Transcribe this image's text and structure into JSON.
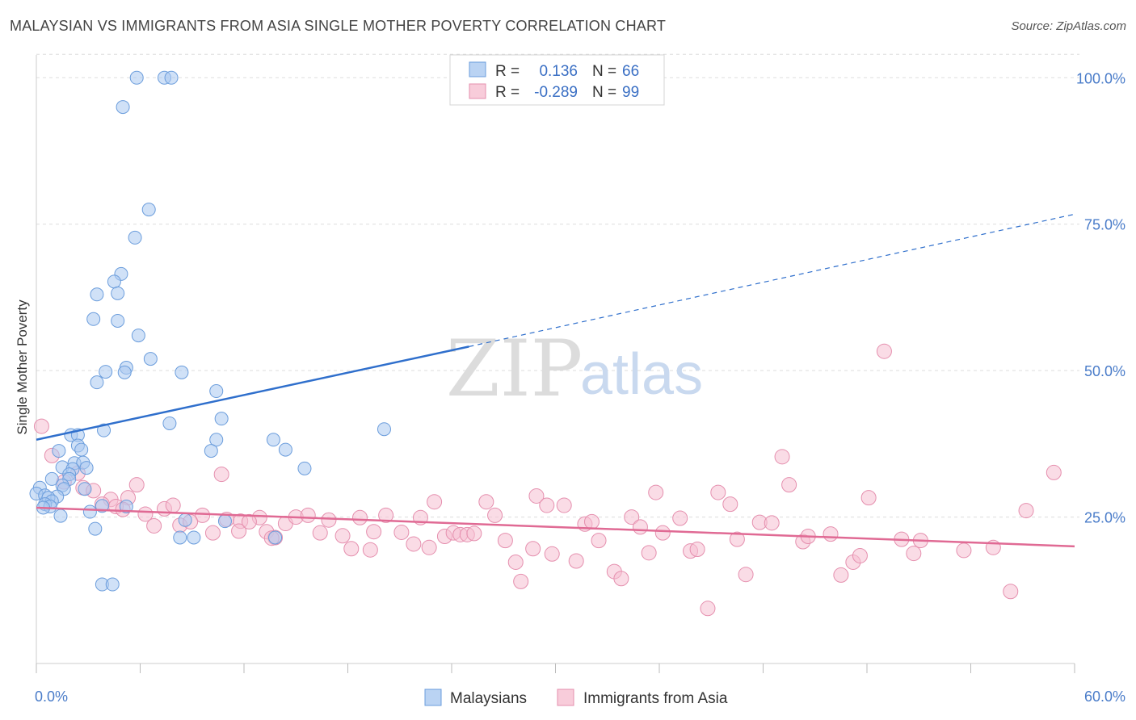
{
  "title": "MALAYSIAN VS IMMIGRANTS FROM ASIA SINGLE MOTHER POVERTY CORRELATION CHART",
  "source": "Source: ZipAtlas.com",
  "watermark": {
    "zip": "ZIP",
    "atlas": "atlas"
  },
  "colors": {
    "blue_fill": "#a9c8f0",
    "blue_stroke": "#6b9ddc",
    "blue_line": "#2f6fcc",
    "pink_fill": "#f6bfd1",
    "pink_stroke": "#e58fae",
    "pink_line": "#e06a94",
    "grid": "#dddddd",
    "tick_text": "#4a7cc9"
  },
  "legend": {
    "rows": [
      {
        "r_label": "R = ",
        "r_value": "0.136",
        "n_label": "N = ",
        "n_value": "66"
      },
      {
        "r_label": "R = ",
        "r_value": "-0.289",
        "n_label": "N = ",
        "n_value": "99"
      }
    ]
  },
  "chart_data": {
    "type": "scatter",
    "xlabel": "",
    "ylabel": "Single Mother Poverty",
    "xlim": [
      0,
      60
    ],
    "ylim": [
      0,
      105
    ],
    "x_tick_labels": [
      "0.0%",
      "60.0%"
    ],
    "y_ticks": [
      25,
      50,
      75,
      100
    ],
    "y_tick_labels": [
      "25.0%",
      "50.0%",
      "75.0%",
      "100.0%"
    ],
    "grid": true,
    "legend_position": "top-center",
    "series": [
      {
        "name": "Malaysians",
        "trend": {
          "x0": 0,
          "y0": 38.2,
          "x1": 25,
          "y1": 54.1,
          "dash_x1": 60,
          "dash_y1": 76.7
        },
        "points": [
          [
            5.8,
            100
          ],
          [
            7.4,
            100
          ],
          [
            7.8,
            100
          ],
          [
            5.0,
            95
          ],
          [
            6.5,
            77.5
          ],
          [
            5.7,
            72.7
          ],
          [
            4.9,
            66.5
          ],
          [
            4.5,
            65.2
          ],
          [
            3.5,
            63
          ],
          [
            4.7,
            63.2
          ],
          [
            3.3,
            58.8
          ],
          [
            4.7,
            58.5
          ],
          [
            5.9,
            56
          ],
          [
            6.6,
            52
          ],
          [
            4.0,
            49.8
          ],
          [
            5.2,
            50.5
          ],
          [
            5.1,
            49.7
          ],
          [
            8.4,
            49.7
          ],
          [
            3.5,
            48
          ],
          [
            10.4,
            46.5
          ],
          [
            7.7,
            41
          ],
          [
            10.7,
            41.8
          ],
          [
            20.1,
            40
          ],
          [
            2.0,
            39
          ],
          [
            2.4,
            39
          ],
          [
            3.9,
            39.8
          ],
          [
            10.4,
            38.2
          ],
          [
            13.7,
            38.2
          ],
          [
            2.4,
            37.2
          ],
          [
            2.6,
            36.5
          ],
          [
            10.1,
            36.3
          ],
          [
            14.4,
            36.5
          ],
          [
            1.3,
            36.3
          ],
          [
            2.2,
            34.2
          ],
          [
            2.7,
            34.3
          ],
          [
            1.5,
            33.5
          ],
          [
            2.1,
            33.2
          ],
          [
            2.9,
            33.4
          ],
          [
            15.5,
            33.3
          ],
          [
            1.9,
            32.3
          ],
          [
            1.9,
            31.5
          ],
          [
            0.9,
            31.5
          ],
          [
            1.5,
            30.4
          ],
          [
            1.6,
            29.8
          ],
          [
            2.8,
            29.8
          ],
          [
            0.2,
            30.0
          ],
          [
            0.0,
            29
          ],
          [
            0.5,
            28.7
          ],
          [
            1.2,
            28.5
          ],
          [
            0.7,
            28.3
          ],
          [
            0.9,
            27.7
          ],
          [
            0.5,
            27.2
          ],
          [
            0.8,
            26.8
          ],
          [
            0.4,
            26.6
          ],
          [
            3.8,
            26.9
          ],
          [
            5.2,
            26.8
          ],
          [
            3.1,
            25.9
          ],
          [
            1.4,
            25.2
          ],
          [
            8.6,
            24.5
          ],
          [
            10.9,
            24.3
          ],
          [
            3.4,
            23.0
          ],
          [
            8.3,
            21.5
          ],
          [
            9.1,
            21.5
          ],
          [
            13.8,
            21.5
          ],
          [
            3.8,
            13.5
          ],
          [
            4.4,
            13.5
          ]
        ]
      },
      {
        "name": "Immigrants from Asia",
        "trend": {
          "x0": 0,
          "y0": 26.6,
          "x1": 60,
          "y1": 20.0
        },
        "points": [
          [
            0.3,
            40.5
          ],
          [
            0.9,
            35.5
          ],
          [
            2.4,
            32.5
          ],
          [
            1.6,
            31.0
          ],
          [
            2.7,
            30.0
          ],
          [
            3.3,
            29.5
          ],
          [
            5.8,
            30.5
          ],
          [
            10.7,
            32.3
          ],
          [
            4.3,
            28.0
          ],
          [
            5.3,
            28.3
          ],
          [
            3.8,
            27.2
          ],
          [
            4.6,
            26.8
          ],
          [
            5.0,
            26.3
          ],
          [
            6.3,
            25.5
          ],
          [
            7.4,
            26.4
          ],
          [
            7.9,
            27.0
          ],
          [
            9.6,
            25.3
          ],
          [
            11.0,
            24.6
          ],
          [
            11.8,
            24.3
          ],
          [
            12.9,
            24.9
          ],
          [
            6.8,
            23.5
          ],
          [
            8.3,
            23.6
          ],
          [
            8.9,
            24.2
          ],
          [
            10.2,
            22.3
          ],
          [
            11.7,
            22.6
          ],
          [
            12.3,
            24.2
          ],
          [
            13.3,
            22.5
          ],
          [
            13.8,
            21.5
          ],
          [
            14.4,
            23.9
          ],
          [
            15.0,
            25.0
          ],
          [
            15.7,
            25.3
          ],
          [
            16.4,
            22.3
          ],
          [
            16.9,
            24.5
          ],
          [
            17.7,
            21.8
          ],
          [
            18.2,
            19.6
          ],
          [
            18.7,
            24.9
          ],
          [
            19.3,
            19.4
          ],
          [
            19.5,
            22.5
          ],
          [
            20.2,
            25.3
          ],
          [
            21.1,
            22.4
          ],
          [
            21.8,
            20.4
          ],
          [
            22.2,
            24.9
          ],
          [
            22.7,
            19.8
          ],
          [
            23.0,
            27.6
          ],
          [
            23.6,
            21.7
          ],
          [
            24.1,
            22.3
          ],
          [
            24.5,
            22.0
          ],
          [
            24.9,
            22.0
          ],
          [
            25.3,
            22.2
          ],
          [
            26.0,
            27.6
          ],
          [
            26.5,
            25.3
          ],
          [
            27.1,
            21.0
          ],
          [
            27.7,
            17.3
          ],
          [
            28.0,
            14.0
          ],
          [
            28.7,
            19.6
          ],
          [
            28.9,
            28.6
          ],
          [
            29.5,
            27.0
          ],
          [
            29.8,
            18.7
          ],
          [
            30.5,
            27.0
          ],
          [
            31.2,
            17.5
          ],
          [
            31.7,
            23.8
          ],
          [
            32.1,
            24.2
          ],
          [
            32.5,
            21.0
          ],
          [
            33.4,
            15.7
          ],
          [
            33.8,
            14.5
          ],
          [
            34.4,
            25.0
          ],
          [
            34.9,
            23.3
          ],
          [
            35.4,
            18.9
          ],
          [
            35.8,
            29.2
          ],
          [
            36.2,
            22.3
          ],
          [
            37.2,
            24.8
          ],
          [
            37.8,
            19.2
          ],
          [
            38.2,
            19.5
          ],
          [
            38.8,
            9.4
          ],
          [
            39.4,
            29.2
          ],
          [
            40.1,
            27.2
          ],
          [
            40.5,
            21.2
          ],
          [
            41.0,
            15.2
          ],
          [
            41.8,
            24.1
          ],
          [
            42.5,
            24.0
          ],
          [
            43.1,
            35.3
          ],
          [
            43.5,
            30.5
          ],
          [
            44.3,
            20.8
          ],
          [
            44.6,
            21.7
          ],
          [
            45.9,
            22.1
          ],
          [
            46.5,
            15.1
          ],
          [
            47.2,
            17.3
          ],
          [
            47.6,
            18.4
          ],
          [
            48.1,
            28.3
          ],
          [
            49.0,
            53.3
          ],
          [
            50.0,
            21.2
          ],
          [
            50.7,
            18.8
          ],
          [
            51.1,
            21.0
          ],
          [
            53.6,
            19.3
          ],
          [
            55.3,
            19.8
          ],
          [
            56.3,
            12.3
          ],
          [
            57.2,
            26.1
          ],
          [
            58.8,
            32.6
          ],
          [
            13.6,
            21.4
          ]
        ]
      }
    ]
  }
}
